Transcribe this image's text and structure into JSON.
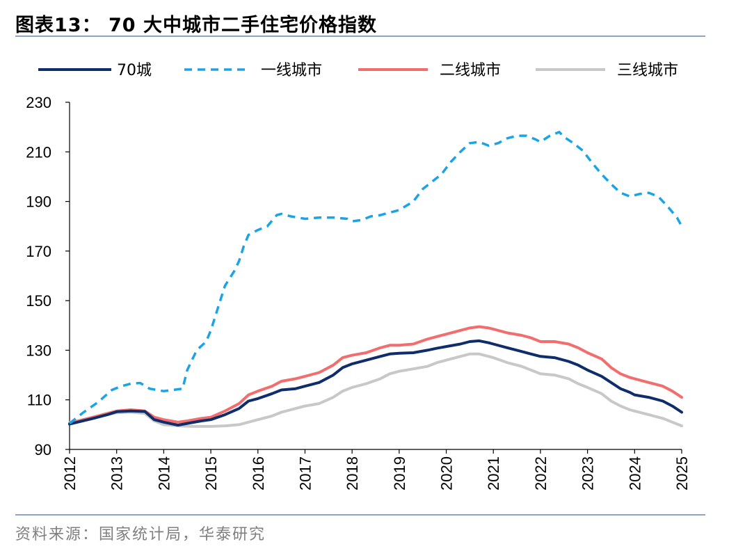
{
  "header": {
    "title": "图表13：  70 大中城市二手住宅价格指数"
  },
  "footer": {
    "source": "资料来源：国家统计局，华泰研究"
  },
  "chart_data": {
    "type": "line",
    "title": "70 大中城市二手住宅价格指数",
    "xlabel": "",
    "ylabel": "",
    "ylim": [
      90,
      230
    ],
    "yticks": [
      90,
      110,
      130,
      150,
      170,
      190,
      210,
      230
    ],
    "xlim": [
      2012,
      2025
    ],
    "xticks": [
      "2012",
      "2013",
      "2014",
      "2015",
      "2016",
      "2017",
      "2018",
      "2019",
      "2020",
      "2021",
      "2022",
      "2023",
      "2024",
      "2025"
    ],
    "legend_position": "top",
    "grid": false,
    "series": [
      {
        "name": "70城",
        "color": "#0f2d6b",
        "dash": "solid",
        "points": [
          [
            2012.0,
            100.2
          ],
          [
            2012.5,
            102.5
          ],
          [
            2012.8,
            104.0
          ],
          [
            2013.0,
            105.2
          ],
          [
            2013.3,
            105.5
          ],
          [
            2013.6,
            105.3
          ],
          [
            2013.8,
            102.0
          ],
          [
            2014.0,
            101.0
          ],
          [
            2014.3,
            99.8
          ],
          [
            2014.5,
            100.5
          ],
          [
            2014.8,
            101.5
          ],
          [
            2015.0,
            102.0
          ],
          [
            2015.3,
            104.0
          ],
          [
            2015.6,
            106.5
          ],
          [
            2015.8,
            109.5
          ],
          [
            2016.0,
            110.5
          ],
          [
            2016.3,
            112.5
          ],
          [
            2016.5,
            114.0
          ],
          [
            2016.8,
            114.5
          ],
          [
            2017.0,
            115.5
          ],
          [
            2017.3,
            117.0
          ],
          [
            2017.6,
            120.0
          ],
          [
            2017.8,
            123.0
          ],
          [
            2018.0,
            124.5
          ],
          [
            2018.3,
            126.0
          ],
          [
            2018.6,
            127.5
          ],
          [
            2018.8,
            128.5
          ],
          [
            2019.0,
            128.8
          ],
          [
            2019.3,
            129.0
          ],
          [
            2019.6,
            130.0
          ],
          [
            2019.8,
            130.8
          ],
          [
            2020.0,
            131.5
          ],
          [
            2020.3,
            132.5
          ],
          [
            2020.5,
            133.5
          ],
          [
            2020.7,
            133.8
          ],
          [
            2020.9,
            133.0
          ],
          [
            2021.0,
            132.5
          ],
          [
            2021.3,
            131.0
          ],
          [
            2021.6,
            129.5
          ],
          [
            2021.8,
            128.5
          ],
          [
            2022.0,
            127.5
          ],
          [
            2022.3,
            127.0
          ],
          [
            2022.6,
            125.5
          ],
          [
            2022.8,
            124.0
          ],
          [
            2023.0,
            122.0
          ],
          [
            2023.3,
            119.5
          ],
          [
            2023.5,
            117.0
          ],
          [
            2023.7,
            114.5
          ],
          [
            2023.9,
            113.0
          ],
          [
            2024.0,
            112.0
          ],
          [
            2024.3,
            111.0
          ],
          [
            2024.6,
            109.5
          ],
          [
            2024.8,
            107.5
          ],
          [
            2025.0,
            105.0
          ]
        ]
      },
      {
        "name": "一线城市",
        "color": "#1ba3e6",
        "dash": "dashed",
        "points": [
          [
            2012.0,
            100.5
          ],
          [
            2012.3,
            105.0
          ],
          [
            2012.6,
            109.0
          ],
          [
            2012.9,
            114.0
          ],
          [
            2013.1,
            115.5
          ],
          [
            2013.3,
            116.5
          ],
          [
            2013.5,
            116.8
          ],
          [
            2013.7,
            114.5
          ],
          [
            2014.0,
            113.5
          ],
          [
            2014.2,
            114.0
          ],
          [
            2014.4,
            114.5
          ],
          [
            2014.5,
            122.0
          ],
          [
            2014.7,
            130.0
          ],
          [
            2014.9,
            133.5
          ],
          [
            2015.0,
            138.0
          ],
          [
            2015.2,
            150.0
          ],
          [
            2015.3,
            156.0
          ],
          [
            2015.5,
            162.0
          ],
          [
            2015.6,
            166.0
          ],
          [
            2015.7,
            172.0
          ],
          [
            2015.8,
            176.5
          ],
          [
            2016.0,
            178.5
          ],
          [
            2016.2,
            180.0
          ],
          [
            2016.4,
            184.5
          ],
          [
            2016.5,
            185.0
          ],
          [
            2016.7,
            184.0
          ],
          [
            2017.0,
            183.0
          ],
          [
            2017.3,
            183.5
          ],
          [
            2017.6,
            183.5
          ],
          [
            2017.9,
            183.0
          ],
          [
            2018.0,
            182.0
          ],
          [
            2018.2,
            182.5
          ],
          [
            2018.4,
            184.0
          ],
          [
            2018.6,
            184.5
          ],
          [
            2018.8,
            185.5
          ],
          [
            2019.0,
            186.5
          ],
          [
            2019.3,
            190.0
          ],
          [
            2019.5,
            195.0
          ],
          [
            2019.7,
            198.0
          ],
          [
            2019.9,
            201.0
          ],
          [
            2020.1,
            206.0
          ],
          [
            2020.3,
            210.0
          ],
          [
            2020.5,
            213.5
          ],
          [
            2020.7,
            214.0
          ],
          [
            2020.9,
            212.5
          ],
          [
            2021.1,
            213.5
          ],
          [
            2021.3,
            215.5
          ],
          [
            2021.5,
            216.5
          ],
          [
            2021.7,
            216.5
          ],
          [
            2021.9,
            215.0
          ],
          [
            2022.0,
            214.0
          ],
          [
            2022.2,
            216.5
          ],
          [
            2022.4,
            218.0
          ],
          [
            2022.5,
            216.0
          ],
          [
            2022.7,
            213.5
          ],
          [
            2022.9,
            210.5
          ],
          [
            2023.1,
            205.5
          ],
          [
            2023.3,
            201.0
          ],
          [
            2023.5,
            197.0
          ],
          [
            2023.7,
            193.5
          ],
          [
            2023.9,
            192.0
          ],
          [
            2024.1,
            193.0
          ],
          [
            2024.3,
            193.5
          ],
          [
            2024.5,
            192.0
          ],
          [
            2024.7,
            188.0
          ],
          [
            2024.9,
            183.5
          ],
          [
            2025.0,
            180.0
          ]
        ]
      },
      {
        "name": "二线城市",
        "color": "#f26d6d",
        "dash": "solid",
        "points": [
          [
            2012.0,
            100.5
          ],
          [
            2012.5,
            103.0
          ],
          [
            2012.8,
            104.5
          ],
          [
            2013.0,
            105.5
          ],
          [
            2013.3,
            106.0
          ],
          [
            2013.6,
            105.5
          ],
          [
            2013.8,
            103.0
          ],
          [
            2014.0,
            102.0
          ],
          [
            2014.3,
            101.0
          ],
          [
            2014.5,
            101.5
          ],
          [
            2014.8,
            102.5
          ],
          [
            2015.0,
            103.0
          ],
          [
            2015.3,
            105.5
          ],
          [
            2015.6,
            108.5
          ],
          [
            2015.8,
            112.0
          ],
          [
            2016.0,
            113.5
          ],
          [
            2016.3,
            115.5
          ],
          [
            2016.5,
            117.5
          ],
          [
            2016.8,
            118.5
          ],
          [
            2017.0,
            119.5
          ],
          [
            2017.3,
            121.0
          ],
          [
            2017.6,
            124.0
          ],
          [
            2017.8,
            127.0
          ],
          [
            2018.0,
            128.0
          ],
          [
            2018.3,
            129.0
          ],
          [
            2018.6,
            131.0
          ],
          [
            2018.8,
            132.0
          ],
          [
            2019.0,
            132.0
          ],
          [
            2019.3,
            132.5
          ],
          [
            2019.6,
            134.5
          ],
          [
            2019.8,
            135.5
          ],
          [
            2020.0,
            136.5
          ],
          [
            2020.3,
            138.0
          ],
          [
            2020.5,
            139.0
          ],
          [
            2020.7,
            139.5
          ],
          [
            2020.9,
            139.0
          ],
          [
            2021.0,
            138.5
          ],
          [
            2021.3,
            137.0
          ],
          [
            2021.6,
            136.0
          ],
          [
            2021.8,
            135.0
          ],
          [
            2022.0,
            133.5
          ],
          [
            2022.3,
            133.5
          ],
          [
            2022.6,
            132.5
          ],
          [
            2022.8,
            131.0
          ],
          [
            2023.0,
            129.0
          ],
          [
            2023.3,
            126.5
          ],
          [
            2023.5,
            123.0
          ],
          [
            2023.7,
            120.5
          ],
          [
            2023.9,
            119.0
          ],
          [
            2024.0,
            118.5
          ],
          [
            2024.3,
            117.0
          ],
          [
            2024.6,
            115.5
          ],
          [
            2024.8,
            113.5
          ],
          [
            2025.0,
            111.0
          ]
        ]
      },
      {
        "name": "三线城市",
        "color": "#c8c8c8",
        "dash": "solid",
        "points": [
          [
            2012.0,
            100.8
          ],
          [
            2012.5,
            103.0
          ],
          [
            2012.8,
            104.0
          ],
          [
            2013.0,
            104.8
          ],
          [
            2013.3,
            105.0
          ],
          [
            2013.6,
            104.5
          ],
          [
            2013.8,
            101.5
          ],
          [
            2014.0,
            100.0
          ],
          [
            2014.3,
            99.5
          ],
          [
            2014.6,
            99.3
          ],
          [
            2015.0,
            99.3
          ],
          [
            2015.3,
            99.5
          ],
          [
            2015.6,
            100.0
          ],
          [
            2015.8,
            101.0
          ],
          [
            2016.0,
            102.0
          ],
          [
            2016.3,
            103.5
          ],
          [
            2016.5,
            105.0
          ],
          [
            2016.8,
            106.5
          ],
          [
            2017.0,
            107.5
          ],
          [
            2017.3,
            108.5
          ],
          [
            2017.6,
            111.0
          ],
          [
            2017.8,
            113.5
          ],
          [
            2018.0,
            115.0
          ],
          [
            2018.3,
            116.5
          ],
          [
            2018.6,
            118.5
          ],
          [
            2018.8,
            120.5
          ],
          [
            2019.0,
            121.5
          ],
          [
            2019.3,
            122.5
          ],
          [
            2019.6,
            123.5
          ],
          [
            2019.8,
            125.0
          ],
          [
            2020.0,
            126.0
          ],
          [
            2020.3,
            127.5
          ],
          [
            2020.5,
            128.5
          ],
          [
            2020.7,
            128.5
          ],
          [
            2020.9,
            127.5
          ],
          [
            2021.0,
            127.0
          ],
          [
            2021.3,
            125.0
          ],
          [
            2021.6,
            123.5
          ],
          [
            2021.8,
            122.0
          ],
          [
            2022.0,
            120.5
          ],
          [
            2022.3,
            120.0
          ],
          [
            2022.6,
            118.5
          ],
          [
            2022.8,
            116.5
          ],
          [
            2023.0,
            115.0
          ],
          [
            2023.3,
            112.5
          ],
          [
            2023.5,
            109.5
          ],
          [
            2023.7,
            107.5
          ],
          [
            2023.9,
            106.0
          ],
          [
            2024.0,
            105.5
          ],
          [
            2024.3,
            104.0
          ],
          [
            2024.6,
            102.5
          ],
          [
            2024.8,
            101.0
          ],
          [
            2025.0,
            99.5
          ]
        ]
      }
    ]
  }
}
